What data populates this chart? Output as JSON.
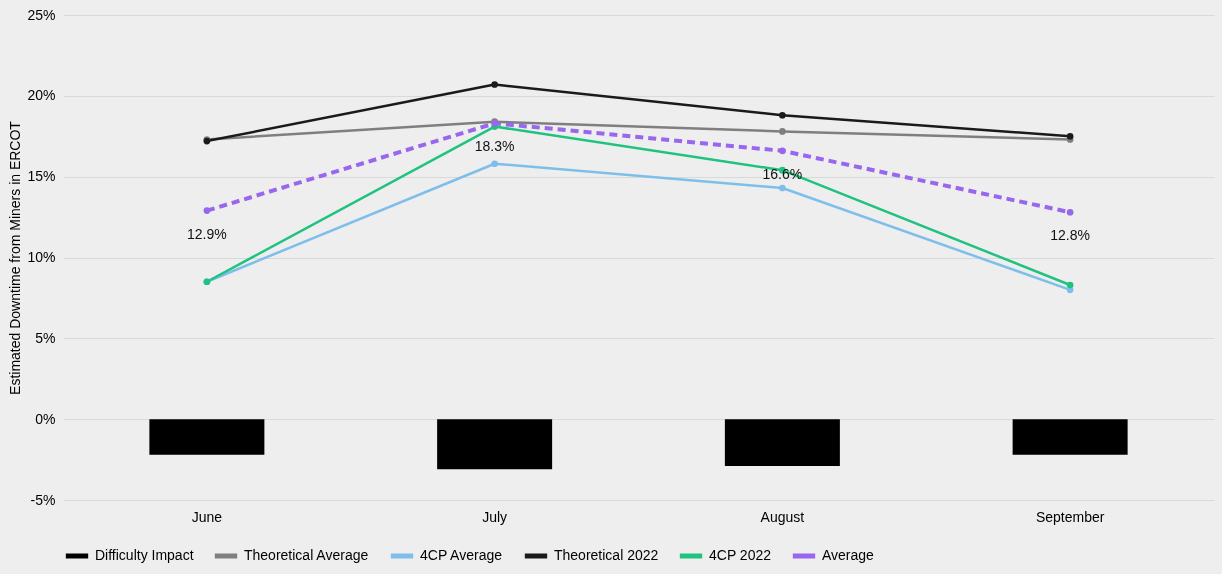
{
  "chart_data": {
    "type": "line",
    "ylabel": "Estimated Downtime from Miners in ERCOT",
    "categories": [
      "June",
      "July",
      "August",
      "September"
    ],
    "ylim": [
      -5,
      25
    ],
    "yticks": [
      {
        "value": -5,
        "label": "-5%"
      },
      {
        "value": 0,
        "label": "0%"
      },
      {
        "value": 5,
        "label": "5%"
      },
      {
        "value": 10,
        "label": "10%"
      },
      {
        "value": 15,
        "label": "15%"
      },
      {
        "value": 20,
        "label": "20%"
      },
      {
        "value": 25,
        "label": "25%"
      }
    ],
    "grid": "y",
    "legend": "bottom",
    "marker": "circle",
    "series": [
      {
        "name": "Difficulty Impact",
        "type": "bar",
        "color": "#000000",
        "values": [
          -2.2,
          -3.1,
          -2.9,
          -2.2
        ]
      },
      {
        "name": "Theoretical Average",
        "color": "#7f7f7f",
        "line_style": "solid",
        "values": [
          17.3,
          18.4,
          17.8,
          17.3
        ]
      },
      {
        "name": "4CP Average",
        "color": "#7dbfea",
        "line_style": "solid",
        "values": [
          8.5,
          15.8,
          14.3,
          8.0
        ]
      },
      {
        "name": "Theoretical 2022",
        "color": "#1a1a1a",
        "line_style": "solid",
        "values": [
          17.2,
          20.7,
          18.8,
          17.5
        ]
      },
      {
        "name": "4CP 2022",
        "color": "#1fc27f",
        "line_style": "solid",
        "values": [
          8.5,
          18.1,
          15.4,
          8.3
        ]
      },
      {
        "name": "Average",
        "color": "#9966ee",
        "line_style": "dashed",
        "values": [
          12.9,
          18.3,
          16.6,
          12.8
        ],
        "value_labels": [
          "12.9%",
          "18.3%",
          "16.6%",
          "12.8%"
        ]
      }
    ]
  }
}
